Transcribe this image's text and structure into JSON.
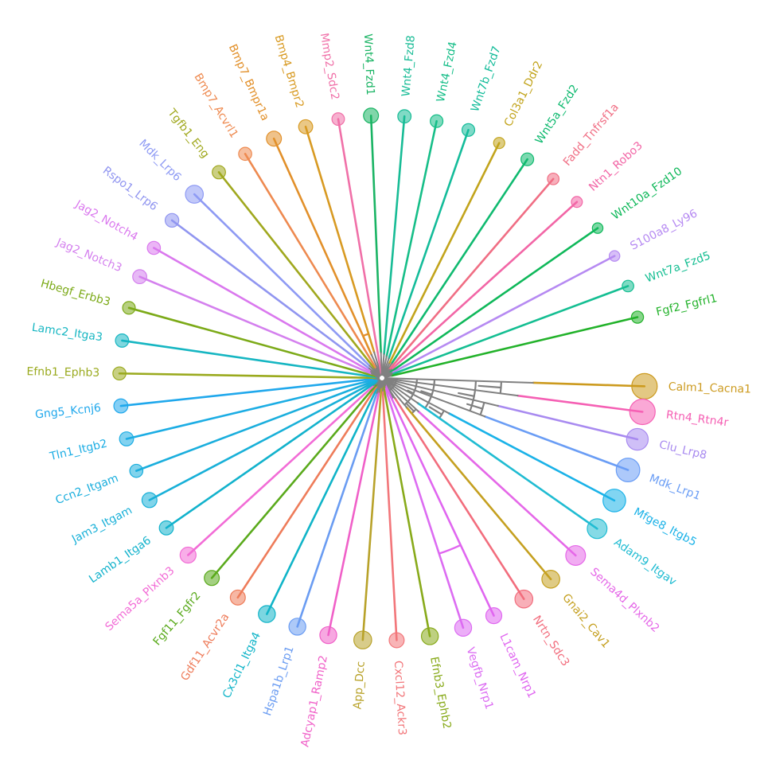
{
  "diagram": {
    "type": "circular-dendrogram",
    "branch_color": "#808080"
  },
  "leaves": [
    {
      "label": "Calm1_Cacna1",
      "color": "#CC9A1E",
      "size": 1.0
    },
    {
      "label": "Rtn4_Rtn4r",
      "color": "#F560B4",
      "size": 1.0
    },
    {
      "label": "Clu_Lrp8",
      "color": "#A88AF0",
      "size": 0.8
    },
    {
      "label": "Mdk_Lrp1",
      "color": "#6A9DF5",
      "size": 0.9
    },
    {
      "label": "Mfge8_Itgb5",
      "color": "#1AB2E8",
      "size": 0.85
    },
    {
      "label": "Adam9_Itgav",
      "color": "#20BCD2",
      "size": 0.7
    },
    {
      "label": "Sema4d_Plxnb2",
      "color": "#E568E8",
      "size": 0.7
    },
    {
      "label": "Gnai2_Cav1",
      "color": "#C5A020",
      "size": 0.6
    },
    {
      "label": "Nrtn_Sdc3",
      "color": "#F26D7D",
      "size": 0.6
    },
    {
      "label": "L1cam_Nrp1",
      "color": "#E066F0",
      "size": 0.5
    },
    {
      "label": "Vegfb_Nrp1",
      "color": "#DC6CF2",
      "size": 0.55
    },
    {
      "label": "Efnb3_Ephb2",
      "color": "#88AA1A",
      "size": 0.55
    },
    {
      "label": "Cxcl12_Ackr3",
      "color": "#F2767A",
      "size": 0.45
    },
    {
      "label": "App_Dcc",
      "color": "#B8A22A",
      "size": 0.6
    },
    {
      "label": "Adcyap1_Ramp2",
      "color": "#F060C8",
      "size": 0.55
    },
    {
      "label": "Hspa1b_Lrp1",
      "color": "#6A9CF2",
      "size": 0.55
    },
    {
      "label": "Cx3cl1_Itga4",
      "color": "#10B4C8",
      "size": 0.55
    },
    {
      "label": "Gdf11_Acvr2a",
      "color": "#EE7C5A",
      "size": 0.45
    },
    {
      "label": "Fgf11_Fgfr2",
      "color": "#5AAA1C",
      "size": 0.45
    },
    {
      "label": "Sema5a_Plxnb3",
      "color": "#F26CD6",
      "size": 0.5
    },
    {
      "label": "Lamb1_Itga6",
      "color": "#12B2CC",
      "size": 0.4
    },
    {
      "label": "Jam3_Itgam",
      "color": "#18B0D8",
      "size": 0.45
    },
    {
      "label": "Ccn2_Itgam",
      "color": "#1AAEDD",
      "size": 0.35
    },
    {
      "label": "Tln1_Itgb2",
      "color": "#1CADE4",
      "size": 0.4
    },
    {
      "label": "Gng5_Kcnj6",
      "color": "#20A8EC",
      "size": 0.4
    },
    {
      "label": "Efnb1_Ephb3",
      "color": "#9AAA1E",
      "size": 0.35
    },
    {
      "label": "Lamc2_Itga3",
      "color": "#16B6C2",
      "size": 0.36
    },
    {
      "label": "Hbegf_Erbb3",
      "color": "#7CAA18",
      "size": 0.33
    },
    {
      "label": "Jag2_Notch3",
      "color": "#D480EE",
      "size": 0.4
    },
    {
      "label": "Jag2_Notch4",
      "color": "#DA78EE",
      "size": 0.35
    },
    {
      "label": "Rspo1_Lrp6",
      "color": "#9095F0",
      "size": 0.38
    },
    {
      "label": "Mdk_Lrp6",
      "color": "#8E9AF4",
      "size": 0.6
    },
    {
      "label": "Tgfb1_Eng",
      "color": "#A0A81E",
      "size": 0.36
    },
    {
      "label": "Bmp7_Acvrl1",
      "color": "#EE8A50",
      "size": 0.35
    },
    {
      "label": "Bmp7_Bmpr1a",
      "color": "#E2902A",
      "size": 0.45
    },
    {
      "label": "Bmp4_Bmpr2",
      "color": "#D89A22",
      "size": 0.4
    },
    {
      "label": "Mmp2_Sdc2",
      "color": "#F070A8",
      "size": 0.32
    },
    {
      "label": "Wnt4_Fzd1",
      "color": "#1AB464",
      "size": 0.45
    },
    {
      "label": "Wnt4_Fzd8",
      "color": "#18BC96",
      "size": 0.36
    },
    {
      "label": "Wnt4_Fzd4",
      "color": "#16BE88",
      "size": 0.33
    },
    {
      "label": "Wnt7b_Fzd7",
      "color": "#14BC9A",
      "size": 0.33
    },
    {
      "label": "Col3a1_Ddr2",
      "color": "#C2A41C",
      "size": 0.25
    },
    {
      "label": "Wnt5a_Fzd2",
      "color": "#10BA70",
      "size": 0.33
    },
    {
      "label": "Fadd_Tnfrsf1a",
      "color": "#F06E84",
      "size": 0.27
    },
    {
      "label": "Ntn1_Robo3",
      "color": "#F266A6",
      "size": 0.24
    },
    {
      "label": "Wnt10a_Fzd10",
      "color": "#0FB85A",
      "size": 0.22
    },
    {
      "label": "S100a8_Ly96",
      "color": "#B68AF2",
      "size": 0.22
    },
    {
      "label": "Wnt7a_Fzd5",
      "color": "#14BE92",
      "size": 0.27
    },
    {
      "label": "Fgf2_Fgfrl1",
      "color": "#22B22A",
      "size": 0.3
    }
  ]
}
